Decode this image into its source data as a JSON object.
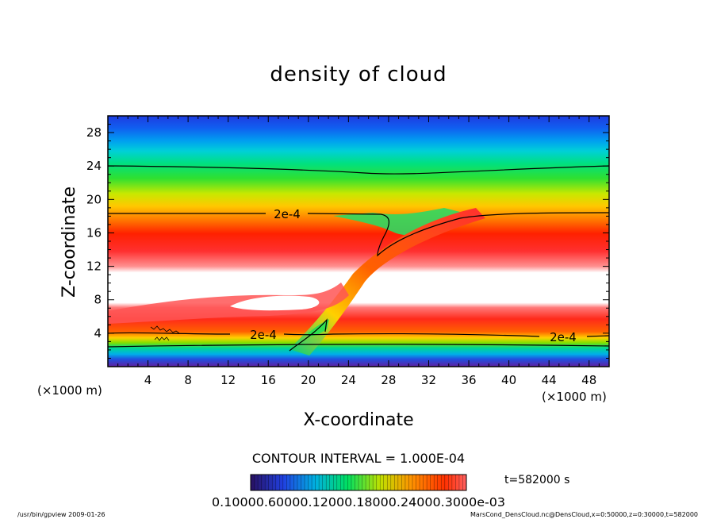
{
  "chart_data": {
    "type": "heatmap",
    "title": "density of cloud",
    "xlabel": "X-coordinate",
    "ylabel": "Z-coordinate",
    "x_unit": "(×1000 m)",
    "y_unit": "(×1000 m)",
    "xlim": [
      0,
      50
    ],
    "ylim": [
      0,
      30
    ],
    "x_ticks": [
      "4",
      "8",
      "12",
      "16",
      "20",
      "24",
      "28",
      "32",
      "36",
      "40",
      "44",
      "48"
    ],
    "y_ticks": [
      "4",
      "8",
      "12",
      "16",
      "20",
      "24",
      "28"
    ],
    "contour_labels": [
      "2e-4",
      "2e-4",
      "2e-4"
    ],
    "contour_interval": "CONTOUR INTERVAL = 1.000E-04",
    "colorbar_labels": "0.10000.60000.12000.18000.24000.3000e-03",
    "time_label": "t=582000 s",
    "footer_left": "/usr/bin/gpview  2009-01-26",
    "footer_right": "MarsCond_DensCloud.nc@DensCloud,x=0:50000,z=0:30000,t=582000",
    "colors": [
      "#2828c8",
      "#2060e8",
      "#00a0f0",
      "#00d0c0",
      "#00e070",
      "#40e020",
      "#c8e800",
      "#ffd000",
      "#ff8000",
      "#ff2000",
      "#ff7070",
      "#ffffff"
    ]
  }
}
